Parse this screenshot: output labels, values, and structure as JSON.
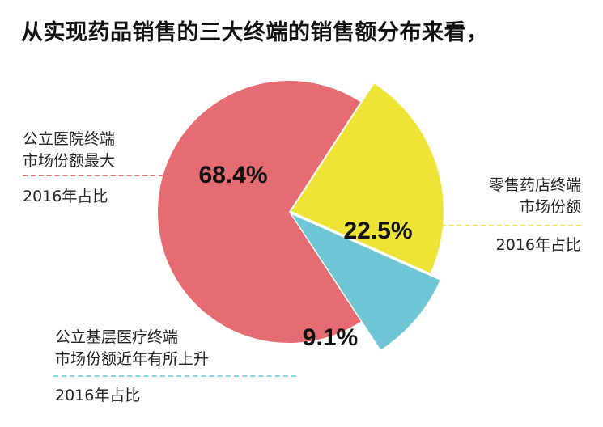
{
  "title": "从实现药品销售的三大终端的销售额分布来看，",
  "colors": {
    "hospital": "#e46c72",
    "retail": "#ede436",
    "primary": "#6fc7d6",
    "hospital_line": "#e46c72",
    "retail_line": "#ede436",
    "primary_line": "#8fd3e0"
  },
  "annotations": {
    "hospital": {
      "line1": "公立医院终端",
      "line2": "市场份额最大",
      "year": "2016年占比"
    },
    "retail": {
      "line1": "零售药店终端",
      "line2": "市场份额",
      "year": "2016年占比"
    },
    "primary": {
      "line1": "公立基层医疗终端",
      "line2": "市场份额近年有所上升",
      "year": "2016年占比"
    }
  },
  "chart_data": {
    "type": "pie",
    "title": "",
    "slices": [
      {
        "name": "公立医院终端",
        "value": 68.4,
        "label": "68.4%",
        "color": "#e46c72"
      },
      {
        "name": "零售药店终端",
        "value": 22.5,
        "label": "22.5%",
        "color": "#ede436"
      },
      {
        "name": "公立基层医疗终端",
        "value": 9.1,
        "label": "9.1%",
        "color": "#6fc7d6"
      }
    ],
    "legend": "none"
  }
}
